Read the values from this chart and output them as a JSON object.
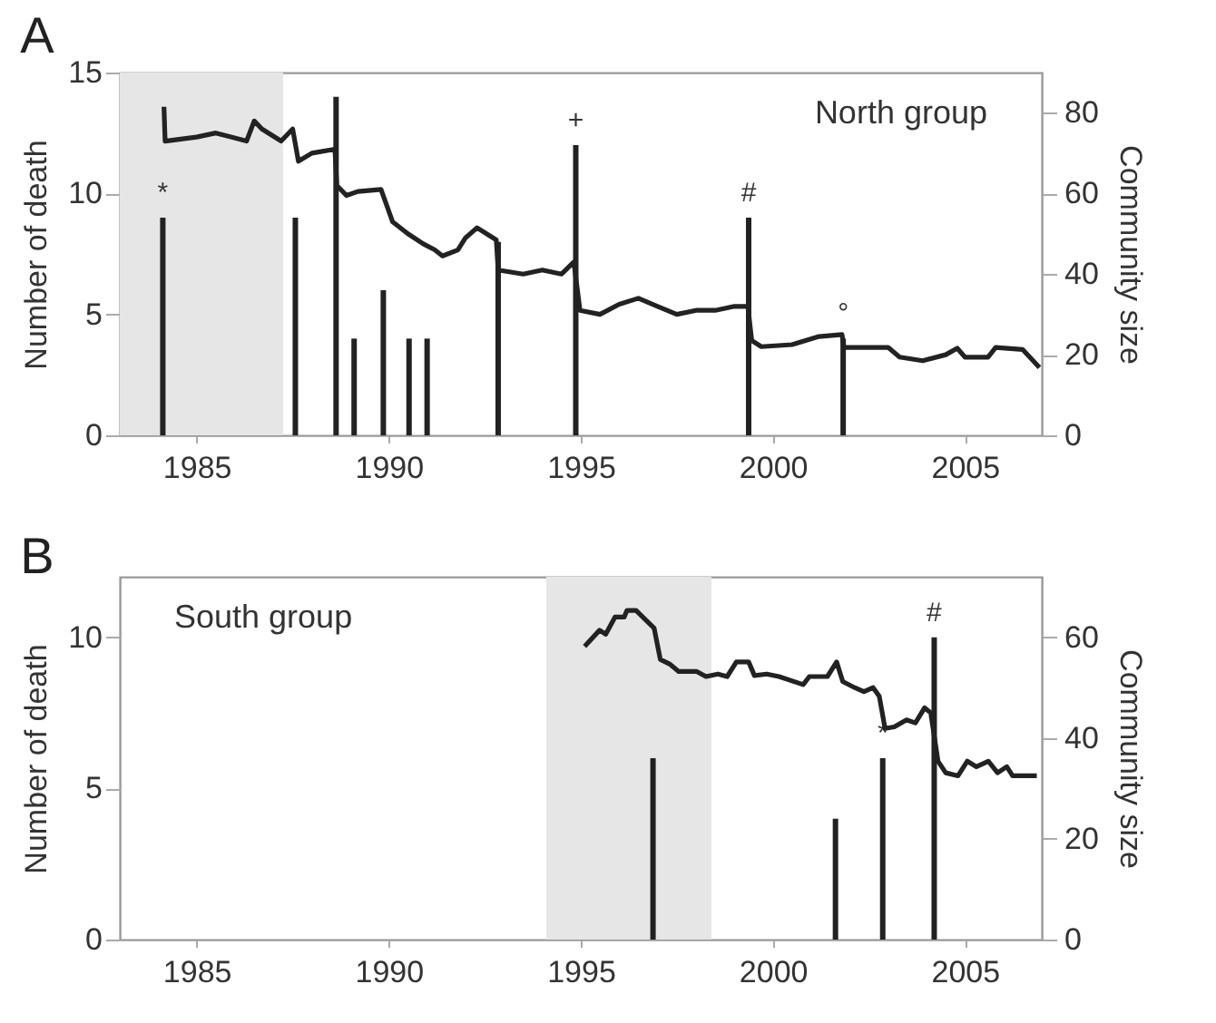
{
  "chart_data": [
    {
      "type": "bar",
      "title": "A",
      "ylabel": "Number of death",
      "y2label": "Community size",
      "xlim": [
        1983,
        2007
      ],
      "xticks": [
        1985,
        1990,
        1995,
        2000,
        2005
      ],
      "ylim": [
        0,
        15
      ],
      "yticks": [
        0,
        5,
        10,
        15
      ],
      "y2lim": [
        0,
        90
      ],
      "y2ticks": [
        0,
        20,
        40,
        60,
        80
      ],
      "bands": [
        {
          "axis": "x",
          "from": 1983,
          "to": 1987.25,
          "color": "#e6e6e6"
        }
      ],
      "annotations": [
        "North group",
        {
          "text": "*",
          "x": 1984.12,
          "y": 9
        },
        {
          "text": "+",
          "x": 1994.87,
          "y": 12
        },
        {
          "text": "#",
          "x": 1999.37,
          "y": 9
        },
        {
          "text": "°",
          "x": 2001.83,
          "y": 4
        }
      ],
      "series": [
        {
          "type": "bar",
          "color": "#222222",
          "x": [
            1984.12,
            1987.57,
            1988.63,
            1989.1,
            1989.86,
            1990.53,
            1991.0,
            1992.85,
            1994.87,
            1999.37,
            2001.83
          ],
          "values": [
            9,
            9,
            14,
            4,
            6,
            4,
            4,
            8,
            12,
            9,
            4
          ]
        },
        {
          "type": "line",
          "axis": "y2",
          "color": "#222222",
          "x": [
            1984.15,
            1984.18,
            1985,
            1985.5,
            1986.3,
            1986.5,
            1986.7,
            1987.2,
            1987.5,
            1987.65,
            1988,
            1988.6,
            1988.65,
            1988.9,
            1989.2,
            1989.8,
            1990.1,
            1990.5,
            1990.9,
            1991.2,
            1991.4,
            1991.8,
            1992.0,
            1992.3,
            1992.8,
            1992.85,
            1993.5,
            1994,
            1994.5,
            1994.82,
            1994.98,
            1995.5,
            1996,
            1996.5,
            1997,
            1997.5,
            1998,
            1998.5,
            1999,
            1999.35,
            1999.45,
            1999.7,
            2000.5,
            2001.2,
            2001.8,
            2001.85,
            2003.0,
            2003.3,
            2003.9,
            2004.5,
            2004.8,
            2005,
            2005.6,
            2005.8,
            2006.5,
            2006.94
          ],
          "values": [
            81.5,
            73,
            74,
            75,
            73,
            78,
            76,
            73,
            76,
            68,
            70,
            71,
            62,
            59.5,
            60.5,
            61,
            53,
            50,
            47.5,
            46,
            44.5,
            46,
            49,
            51.5,
            48.5,
            41,
            40,
            41,
            40,
            43,
            31,
            30,
            32.5,
            34,
            32,
            30,
            31,
            31,
            32,
            32,
            23.5,
            22,
            22.5,
            24.5,
            25,
            21.8,
            21.8,
            19.4,
            18.5,
            20,
            21.6,
            19.4,
            19.4,
            21.8,
            21.3,
            16.8
          ]
        }
      ]
    },
    {
      "type": "bar",
      "title": "B",
      "ylabel": "Number of death",
      "y2label": "Community size",
      "xlim": [
        1983,
        2007
      ],
      "xticks": [
        1985,
        1990,
        1995,
        2000,
        2005
      ],
      "ylim": [
        0,
        12
      ],
      "yticks": [
        0,
        5,
        10
      ],
      "y2lim": [
        0,
        72
      ],
      "y2ticks": [
        0,
        20,
        40,
        60
      ],
      "bands": [
        {
          "axis": "x",
          "from": 1994.1,
          "to": 1998.4,
          "color": "#e6e6e6"
        }
      ],
      "annotations": [
        "South group",
        {
          "text": "*",
          "x": 2002.86,
          "y": 6
        },
        {
          "text": "#",
          "x": 2004.2,
          "y": 10
        }
      ],
      "series": [
        {
          "type": "bar",
          "color": "#222222",
          "x": [
            1996.88,
            2001.63,
            2002.86,
            2004.2
          ],
          "values": [
            6,
            4,
            6,
            10
          ]
        },
        {
          "type": "line",
          "axis": "y2",
          "color": "#222222",
          "x": [
            1995.1,
            1995.49,
            1995.65,
            1995.89,
            1996.13,
            1996.2,
            1996.44,
            1996.68,
            1996.91,
            1997.07,
            1997.31,
            1997.55,
            1998.02,
            1998.26,
            1998.57,
            1998.81,
            1999.05,
            1999.37,
            1999.52,
            1999.84,
            2000.16,
            2000.79,
            2000.95,
            2001.42,
            2001.66,
            2001.82,
            2002.13,
            2002.37,
            2002.61,
            2002.77,
            2002.92,
            2003.16,
            2003.48,
            2003.71,
            2003.95,
            2004.11,
            2004.3,
            2004.5,
            2004.82,
            2005.06,
            2005.3,
            2005.61,
            2005.85,
            2006.09,
            2006.24,
            2006.87
          ],
          "values": [
            58.2,
            61.4,
            60.6,
            64,
            64,
            65.3,
            65.3,
            63.5,
            61.8,
            55.6,
            54.7,
            53.2,
            53.2,
            52.2,
            52.7,
            52.2,
            55.1,
            55.1,
            52.4,
            52.7,
            52.2,
            50.6,
            52.2,
            52.2,
            55.1,
            51.2,
            50,
            49.2,
            50,
            48.3,
            41.9,
            42.2,
            43.6,
            43,
            46,
            45,
            35.4,
            33.1,
            32.5,
            35.4,
            34.3,
            35.4,
            33.1,
            34.3,
            32.5,
            32.5
          ]
        }
      ]
    }
  ]
}
